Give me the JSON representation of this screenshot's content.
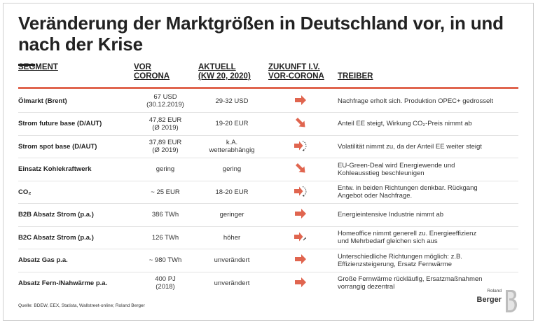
{
  "title": "Veränderung der Marktgrößen in Deutschland vor, in und nach der Krise",
  "columns": {
    "segment": "SEGMENT",
    "vor": "VOR\nCORONA",
    "aktuell": "AKTUELL\n(KW 20, 2020)",
    "zukunft": "ZUKUNFT I.V.\nVOR-CORONA",
    "treiber": "TREIBER"
  },
  "rows": [
    {
      "segment": "Ölmarkt (Brent)",
      "vor": "67 USD\n(30.12.2019)",
      "aktuell": "29-32 USD",
      "trend_icon": "arrow-right-icon",
      "treiber": "Nachfrage erholt sich. Produktion OPEC+ gedrosselt"
    },
    {
      "segment": "Strom future base (D/AUT)",
      "vor": "47,82 EUR\n(Ø 2019)",
      "aktuell": "19-20 EUR",
      "trend_icon": "arrow-down-right-icon",
      "treiber": "Anteil EE steigt, Wirkung CO₂-Preis nimmt ab"
    },
    {
      "segment": "Strom spot base (D/AUT)",
      "vor": "37,89 EUR\n(Ø 2019)",
      "aktuell": "k.A.\nwetterabhängig",
      "trend_icon": "arrow-right-circular-icon",
      "treiber": "Volatilität nimmt zu, da der Anteil EE weiter steigt"
    },
    {
      "segment": "Einsatz Kohlekraftwerk",
      "vor": "gering",
      "aktuell": "gering",
      "trend_icon": "arrow-down-right-icon",
      "treiber": "EU-Green-Deal wird Energiewende und\nKohleausstieg beschleunigen"
    },
    {
      "segment": "CO₂",
      "vor": "~ 25 EUR",
      "aktuell": "18-20 EUR",
      "trend_icon": "arrow-right-circular-icon",
      "treiber": "Entw. in beiden Richtungen denkbar. Rückgang\nAngebot oder Nachfrage."
    },
    {
      "segment": "B2B Absatz Strom (p.a.)",
      "vor": "386 TWh",
      "aktuell": "geringer",
      "trend_icon": "arrow-right-icon",
      "treiber": "Energieintensive Industrie nimmt ab"
    },
    {
      "segment": "B2C Absatz Strom (p.a.)",
      "vor": "126 TWh",
      "aktuell": "höher",
      "trend_icon": "arrow-right-up-icon",
      "treiber": "Homeoffice nimmt generell zu. Energieeffizienz\nund Mehrbedarf gleichen sich aus"
    },
    {
      "segment": "Absatz Gas p.a.",
      "vor": "~ 980 TWh",
      "aktuell": "unverändert",
      "trend_icon": "arrow-right-icon",
      "treiber": "Unterschiedliche Richtungen möglich: z.B.\nEffizienzsteigerung, Ersatz Fernwärme"
    },
    {
      "segment": "Absatz Fern-/Nahwärme p.a.",
      "vor": "400 PJ\n(2018)",
      "aktuell": "unverändert",
      "trend_icon": "arrow-right-icon",
      "treiber": "Große Fernwärme rückläufig, Ersatzmaßnahmen\nvorrangig dezentral"
    }
  ],
  "source": "Quelle: BDEW, EEX, Statista, Wallstreet-online; Roland Berger",
  "logo": {
    "small": "Roland",
    "big": "Berger"
  },
  "accent_color": "#e0654f"
}
